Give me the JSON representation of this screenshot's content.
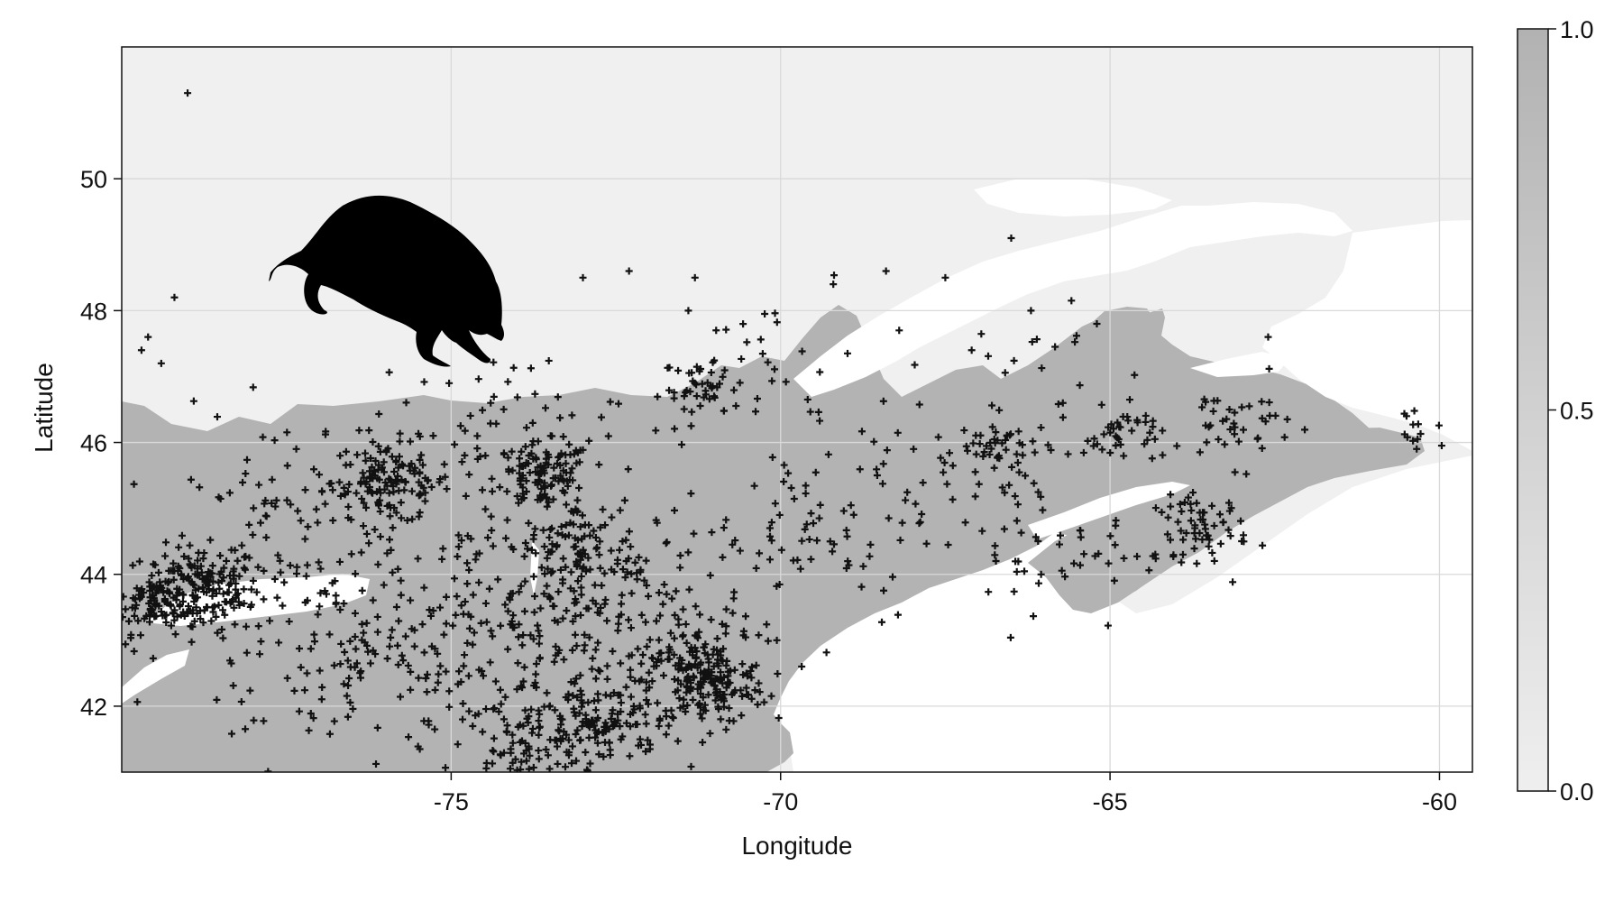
{
  "chart_data": {
    "type": "scatter",
    "subtype": "map-overlay",
    "background": "binary presence raster (grayscale heat map) over northeastern North America",
    "xlabel": "Longitude",
    "ylabel": "Latitude",
    "xlim": [
      -80,
      -59.5
    ],
    "ylim": [
      41,
      52
    ],
    "xticks": [
      -75,
      -70,
      -65,
      -60
    ],
    "yticks": [
      42,
      44,
      46,
      48,
      50
    ],
    "grid": true,
    "marker": "+",
    "colorbar": {
      "ticks": [
        0.0,
        0.5,
        1.0
      ],
      "tick_labels": [
        "0.0",
        "0.5",
        "1.0"
      ],
      "range": [
        0,
        1
      ],
      "color_low": "#efefef",
      "color_high": "#b2b2b2"
    },
    "raster_colors": {
      "absent_land": "#f0f0f0",
      "present_land": "#b3b3b3",
      "water": "#ffffff"
    },
    "silhouette": "raccoon-like mammal silhouette",
    "occurrence_clusters": [
      {
        "lon": -78.8,
        "lat": 43.8,
        "spread": 0.45,
        "n": 160
      },
      {
        "lon": -79.5,
        "lat": 43.6,
        "spread": 0.35,
        "n": 90
      },
      {
        "lon": -75.9,
        "lat": 45.4,
        "spread": 0.45,
        "n": 130
      },
      {
        "lon": -73.6,
        "lat": 45.5,
        "spread": 0.35,
        "n": 110
      },
      {
        "lon": -71.1,
        "lat": 42.35,
        "spread": 0.45,
        "n": 190
      },
      {
        "lon": -73.9,
        "lat": 41.3,
        "spread": 0.55,
        "n": 120
      },
      {
        "lon": -72.7,
        "lat": 41.8,
        "spread": 0.5,
        "n": 120
      },
      {
        "lon": -73.2,
        "lat": 44.4,
        "spread": 0.5,
        "n": 100
      },
      {
        "lon": -71.2,
        "lat": 46.8,
        "spread": 0.3,
        "n": 40
      },
      {
        "lon": -63.6,
        "lat": 44.7,
        "spread": 0.35,
        "n": 60
      },
      {
        "lon": -66.6,
        "lat": 45.9,
        "spread": 0.35,
        "n": 50
      },
      {
        "lon": -64.8,
        "lat": 46.1,
        "spread": 0.3,
        "n": 40
      },
      {
        "lon": -63.1,
        "lat": 46.3,
        "spread": 0.45,
        "n": 40
      },
      {
        "lon": -60.3,
        "lat": 46.1,
        "spread": 0.2,
        "n": 12
      },
      {
        "lon": -76.6,
        "lat": 42.9,
        "spread": 1.3,
        "n": 160
      },
      {
        "lon": -74.5,
        "lat": 43.1,
        "spread": 1.1,
        "n": 140
      },
      {
        "lon": -72.3,
        "lat": 43.3,
        "spread": 1.0,
        "n": 150
      },
      {
        "lon": -69.6,
        "lat": 44.6,
        "spread": 1.0,
        "n": 70
      },
      {
        "lon": -68.0,
        "lat": 45.5,
        "spread": 0.9,
        "n": 40
      },
      {
        "lon": -65.6,
        "lat": 44.4,
        "spread": 0.9,
        "n": 50
      },
      {
        "lon": -77.5,
        "lat": 45.1,
        "spread": 1.0,
        "n": 80
      },
      {
        "lon": -74.0,
        "lat": 46.2,
        "spread": 0.8,
        "n": 60
      },
      {
        "lon": -70.3,
        "lat": 47.2,
        "spread": 0.7,
        "n": 30
      },
      {
        "lon": -66.0,
        "lat": 47.0,
        "spread": 0.8,
        "n": 20
      }
    ],
    "occurrence_outliers": [
      {
        "lon": -79.0,
        "lat": 51.3
      },
      {
        "lon": -79.2,
        "lat": 48.2
      },
      {
        "lon": -79.6,
        "lat": 47.6
      },
      {
        "lon": -79.7,
        "lat": 47.4
      },
      {
        "lon": -79.4,
        "lat": 47.2
      },
      {
        "lon": -74.4,
        "lat": 46.6
      },
      {
        "lon": -73.0,
        "lat": 48.5
      },
      {
        "lon": -72.3,
        "lat": 48.6
      },
      {
        "lon": -71.3,
        "lat": 48.5
      },
      {
        "lon": -71.4,
        "lat": 48.0
      },
      {
        "lon": -69.2,
        "lat": 48.4
      },
      {
        "lon": -68.4,
        "lat": 48.6
      },
      {
        "lon": -67.5,
        "lat": 48.5
      },
      {
        "lon": -66.5,
        "lat": 49.1
      },
      {
        "lon": -66.2,
        "lat": 48.0
      },
      {
        "lon": -68.2,
        "lat": 47.7
      },
      {
        "lon": -67.1,
        "lat": 47.4
      },
      {
        "lon": -65.2,
        "lat": 47.8
      },
      {
        "lon": -62.6,
        "lat": 47.6
      },
      {
        "lon": -60.5,
        "lat": 46.4
      }
    ]
  }
}
